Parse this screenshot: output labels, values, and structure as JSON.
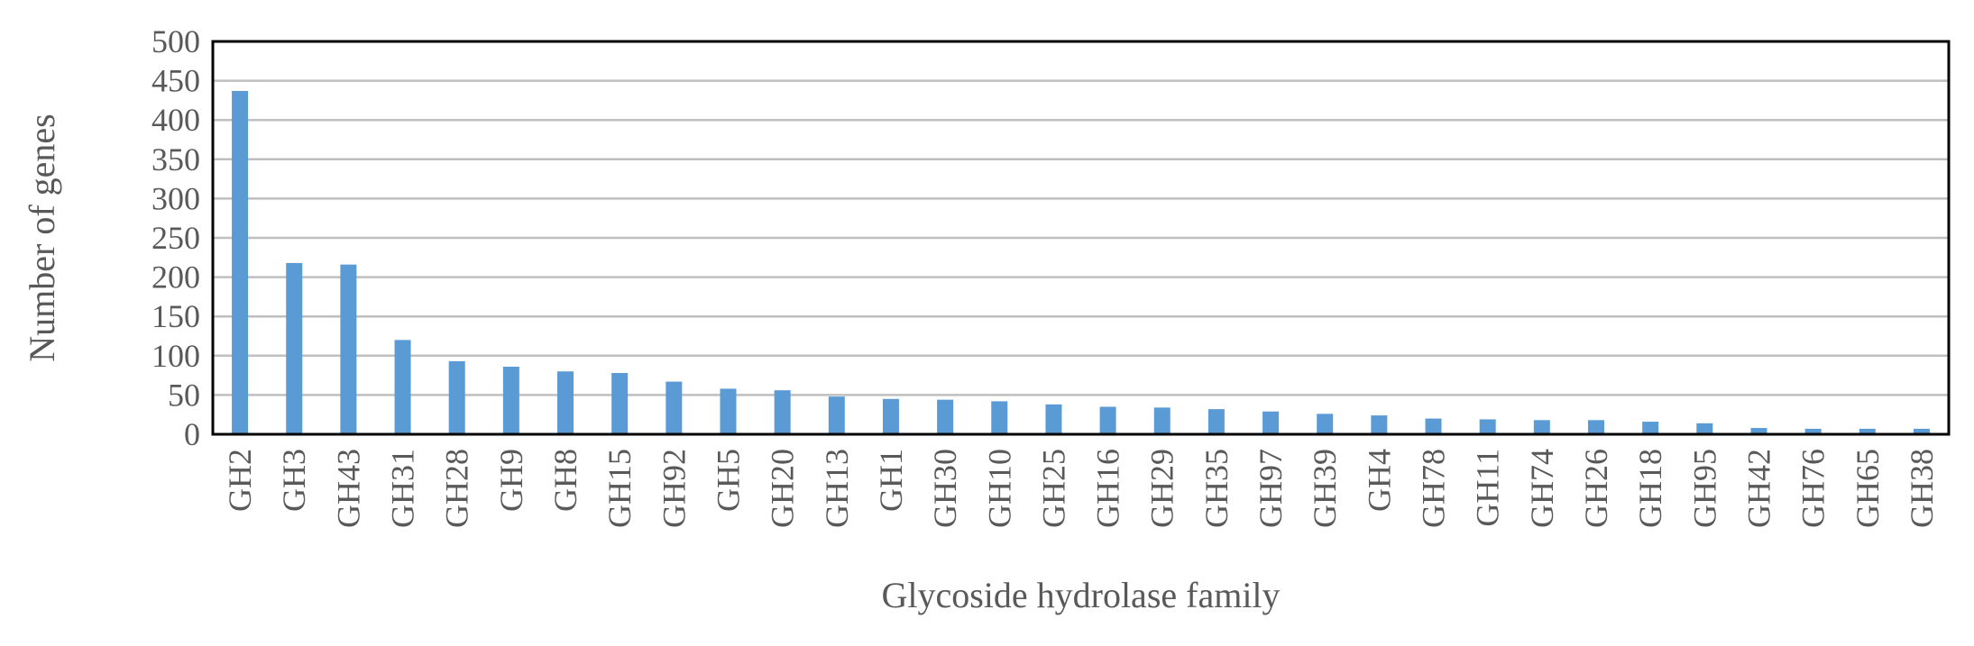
{
  "chart_data": {
    "type": "bar",
    "title": "",
    "xlabel": "Glycoside hydrolase family",
    "ylabel": "Number of genes",
    "ylim": [
      0,
      500
    ],
    "yticks": [
      0,
      50,
      100,
      150,
      200,
      250,
      300,
      350,
      400,
      450,
      500
    ],
    "grid": true,
    "legend": "none",
    "bar_color": "#5B9BD5",
    "categories": [
      "GH2",
      "GH3",
      "GH43",
      "GH31",
      "GH28",
      "GH9",
      "GH8",
      "GH15",
      "GH92",
      "GH5",
      "GH20",
      "GH13",
      "GH1",
      "GH30",
      "GH10",
      "GH25",
      "GH16",
      "GH29",
      "GH35",
      "GH97",
      "GH39",
      "GH4",
      "GH78",
      "GH11",
      "GH74",
      "GH26",
      "GH18",
      "GH95",
      "GH42",
      "GH76",
      "GH65",
      "GH38"
    ],
    "values": [
      437,
      218,
      216,
      120,
      93,
      86,
      80,
      78,
      67,
      58,
      56,
      48,
      45,
      44,
      42,
      38,
      35,
      34,
      32,
      29,
      26,
      24,
      20,
      19,
      18,
      18,
      16,
      14,
      8,
      7,
      7,
      7
    ]
  }
}
